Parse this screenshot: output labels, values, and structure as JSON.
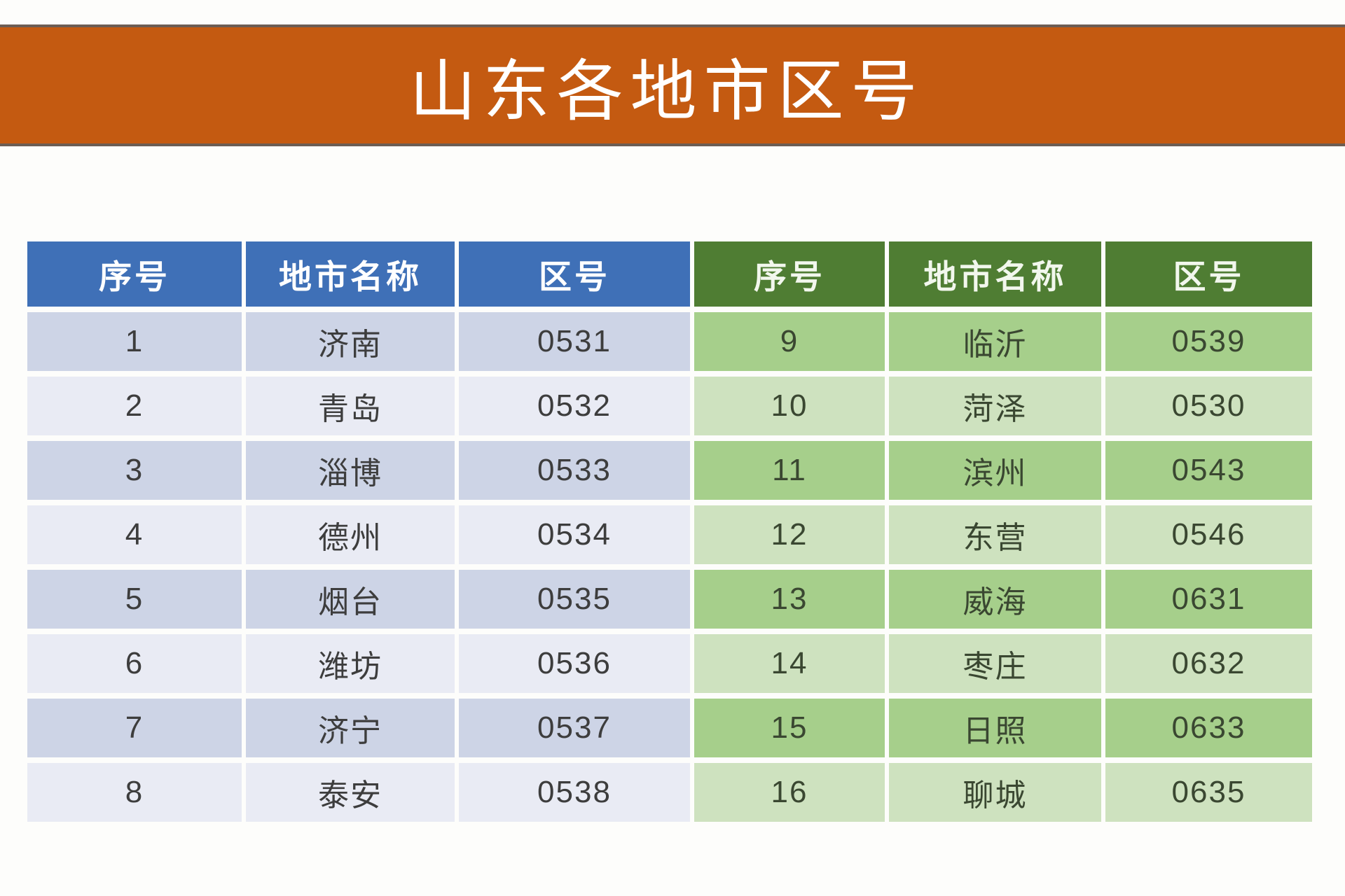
{
  "banner": {
    "title": "山东各地市区号"
  },
  "colors": {
    "banner_bg": "#C45A11",
    "banner_border": "#6C5D54",
    "blue_header_bg": "#3F70B7",
    "green_header_bg": "#4F7D33",
    "blue_row_dark": "#CDD4E6",
    "blue_row_light": "#E9EBF4",
    "green_row_dark": "#A6CF8B",
    "green_row_light": "#CEE2BF",
    "header_text_blue": "#FFFFFF",
    "header_text_green": "#F2F7ED",
    "data_text_blue_side": "#3D3D3D",
    "data_text_green_side": "#3A4731"
  },
  "table": {
    "left": {
      "headers": [
        "序号",
        "地市名称",
        "区号"
      ],
      "rows": [
        [
          "1",
          "济南",
          "0531"
        ],
        [
          "2",
          "青岛",
          "0532"
        ],
        [
          "3",
          "淄博",
          "0533"
        ],
        [
          "4",
          "德州",
          "0534"
        ],
        [
          "5",
          "烟台",
          "0535"
        ],
        [
          "6",
          "潍坊",
          "0536"
        ],
        [
          "7",
          "济宁",
          "0537"
        ],
        [
          "8",
          "泰安",
          "0538"
        ]
      ]
    },
    "right": {
      "headers": [
        "序号",
        "地市名称",
        "区号"
      ],
      "rows": [
        [
          "9",
          "临沂",
          "0539"
        ],
        [
          "10",
          "菏泽",
          "0530"
        ],
        [
          "11",
          "滨州",
          "0543"
        ],
        [
          "12",
          "东营",
          "0546"
        ],
        [
          "13",
          "威海",
          "0631"
        ],
        [
          "14",
          "枣庄",
          "0632"
        ],
        [
          "15",
          "日照",
          "0633"
        ],
        [
          "16",
          "聊城",
          "0635"
        ]
      ]
    }
  },
  "chart_data": {
    "type": "table",
    "title": "山东各地市区号",
    "columns": [
      "序号",
      "地市名称",
      "区号",
      "序号",
      "地市名称",
      "区号"
    ],
    "rows": [
      [
        "1",
        "济南",
        "0531",
        "9",
        "临沂",
        "0539"
      ],
      [
        "2",
        "青岛",
        "0532",
        "10",
        "菏泽",
        "0530"
      ],
      [
        "3",
        "淄博",
        "0533",
        "11",
        "滨州",
        "0543"
      ],
      [
        "4",
        "德州",
        "0534",
        "12",
        "东营",
        "0546"
      ],
      [
        "5",
        "烟台",
        "0535",
        "13",
        "威海",
        "0631"
      ],
      [
        "6",
        "潍坊",
        "0536",
        "14",
        "枣庄",
        "0632"
      ],
      [
        "7",
        "济宁",
        "0537",
        "15",
        "日照",
        "0633"
      ],
      [
        "8",
        "泰安",
        "0538",
        "16",
        "聊城",
        "0635"
      ]
    ],
    "layout_hints": {
      "left_half_theme": "blue banded rows",
      "right_half_theme": "green banded rows",
      "banding": "odd rows dark, even rows light",
      "grid": "white separators between all cells"
    }
  }
}
